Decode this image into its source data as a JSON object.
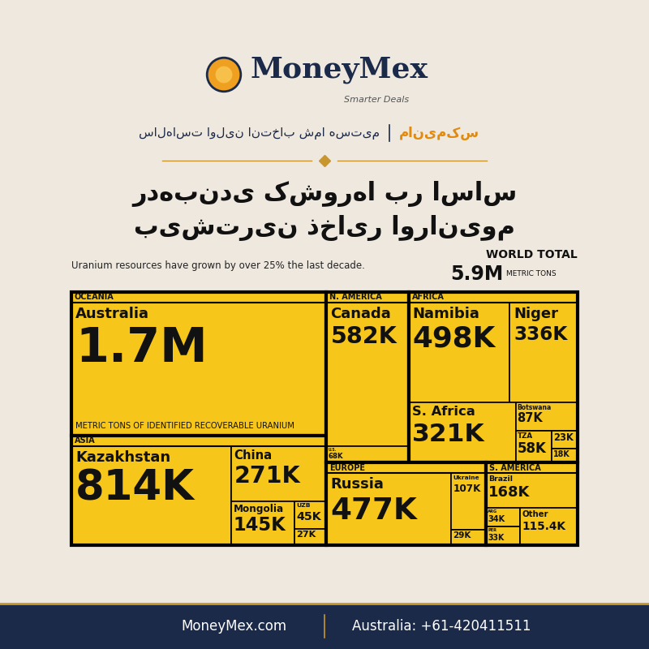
{
  "header": {
    "brand": "MoneyMex",
    "tagline": "Smarter Deals",
    "brand_fa": "مانیمکس",
    "slogan": "سالهاست اولین انتخاب شما هستیم"
  },
  "chart_data": {
    "type": "treemap",
    "title": "رده‌بندی کشورها بر اساس\nبیشترین ذخایر اورانیوم",
    "subtitle": "Uranium resources have grown by over 25% the last decade.",
    "world_total": {
      "label": "WORLD TOTAL",
      "value_label": "5.9M",
      "unit": "METRIC TONS"
    },
    "color": "#f6c61a",
    "groups": [
      {
        "name": "OCEANIA",
        "categories": [
          "Australia"
        ],
        "values": [
          1700000
        ],
        "value_labels": [
          "1.7M"
        ],
        "description": "METRIC TONS OF IDENTIFIED RECOVERABLE URANIUM"
      },
      {
        "name": "ASIA",
        "categories": [
          "Kazakhstan",
          "China",
          "Mongolia",
          "UZB",
          null
        ],
        "values": [
          814000,
          271000,
          145000,
          45000,
          27000
        ],
        "value_labels": [
          "814K",
          "271K",
          "145K",
          "45K",
          "27K"
        ]
      },
      {
        "name": "N. AMERICA",
        "categories": [
          "Canada",
          "U.S."
        ],
        "values": [
          582000,
          68000
        ],
        "value_labels": [
          "582K",
          "68K"
        ]
      },
      {
        "name": "AFRICA",
        "categories": [
          "Namibia",
          "Niger",
          "S. Africa",
          "Botswana",
          "TZA",
          null,
          null
        ],
        "values": [
          498000,
          336000,
          321000,
          87000,
          58000,
          23000,
          18000
        ],
        "value_labels": [
          "498K",
          "336K",
          "321K",
          "87K",
          "58K",
          "23K",
          "18K"
        ]
      },
      {
        "name": "EUROPE",
        "categories": [
          "Russia",
          "Ukraine",
          null
        ],
        "values": [
          477000,
          107000,
          29000
        ],
        "value_labels": [
          "477K",
          "107K",
          "29K"
        ]
      },
      {
        "name": "S. AMERICA",
        "categories": [
          "Brazil",
          "ARG",
          "PER",
          "Other"
        ],
        "values": [
          168000,
          34000,
          33000,
          115400
        ],
        "value_labels": [
          "168K",
          "34K",
          "33K",
          "115.4K"
        ]
      }
    ]
  },
  "footer": {
    "website": "MoneyMex.com",
    "phone": "Australia: +61-420411511"
  }
}
